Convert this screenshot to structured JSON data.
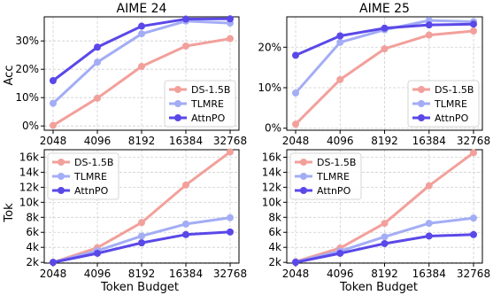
{
  "figure": {
    "ylabel_top": "Acc",
    "ylabel_bottom": "Tok",
    "xlabel": "Token Budget"
  },
  "series_styles": [
    {
      "name": "DS-1.5B",
      "color": "#f2a09b"
    },
    {
      "name": "TLMRE",
      "color": "#a3adf5"
    },
    {
      "name": "AttnPO",
      "color": "#5a48e8"
    }
  ],
  "chart_data": [
    {
      "type": "line",
      "title": "AIME 24",
      "ylabel": "Acc",
      "x": [
        "2048",
        "4096",
        "8192",
        "16384",
        "32768"
      ],
      "yticks": [
        "0%",
        "10%",
        "20%",
        "30%"
      ],
      "ylim": [
        -1.5,
        38.5
      ],
      "ytick_values": [
        0,
        10,
        20,
        30
      ],
      "legend": "lower-right",
      "grid": true,
      "series": [
        {
          "name": "DS-1.5B",
          "values": [
            0.2,
            9.8,
            21.0,
            28.2,
            30.8
          ]
        },
        {
          "name": "TLMRE",
          "values": [
            8.0,
            22.5,
            32.5,
            37.0,
            36.3
          ]
        },
        {
          "name": "AttnPO",
          "values": [
            16.0,
            27.8,
            35.2,
            37.7,
            37.8
          ]
        }
      ]
    },
    {
      "type": "line",
      "title": "AIME 25",
      "ylabel": "",
      "x": [
        "2048",
        "4096",
        "8192",
        "16384",
        "32768"
      ],
      "yticks": [
        "0%",
        "10%",
        "20%"
      ],
      "ylim": [
        -0.5,
        27.5
      ],
      "ytick_values": [
        0,
        10,
        20
      ],
      "legend": "lower-right",
      "grid": true,
      "series": [
        {
          "name": "DS-1.5B",
          "values": [
            1.0,
            12.0,
            19.6,
            23.0,
            24.0
          ]
        },
        {
          "name": "TLMRE",
          "values": [
            8.7,
            21.2,
            24.3,
            26.6,
            26.3
          ]
        },
        {
          "name": "AttnPO",
          "values": [
            18.0,
            22.8,
            24.7,
            25.5,
            25.7
          ]
        }
      ]
    },
    {
      "type": "line",
      "title": "",
      "ylabel": "Tok",
      "xlabel": "Token Budget",
      "x": [
        "2048",
        "4096",
        "8192",
        "16384",
        "32768"
      ],
      "yticks": [
        "2k",
        "4k",
        "6k",
        "8k",
        "10k",
        "12k",
        "14k",
        "16k"
      ],
      "ylim": [
        1900,
        17000
      ],
      "ytick_values": [
        2000,
        4000,
        6000,
        8000,
        10000,
        12000,
        14000,
        16000
      ],
      "legend": "upper-left",
      "grid": true,
      "series": [
        {
          "name": "DS-1.5B",
          "values": [
            2000,
            3950,
            7300,
            12300,
            16700
          ]
        },
        {
          "name": "TLMRE",
          "values": [
            2000,
            3550,
            5500,
            7100,
            7950
          ]
        },
        {
          "name": "AttnPO",
          "values": [
            2000,
            3200,
            4600,
            5700,
            6050
          ]
        }
      ]
    },
    {
      "type": "line",
      "title": "",
      "ylabel": "",
      "xlabel": "Token Budget",
      "x": [
        "2048",
        "4096",
        "8192",
        "16384",
        "32768"
      ],
      "yticks": [
        "2k",
        "4k",
        "6k",
        "8k",
        "10k",
        "12k",
        "14k",
        "16k"
      ],
      "ylim": [
        1900,
        17000
      ],
      "ytick_values": [
        2000,
        4000,
        6000,
        8000,
        10000,
        12000,
        14000,
        16000
      ],
      "legend": "upper-left",
      "grid": true,
      "series": [
        {
          "name": "DS-1.5B",
          "values": [
            2100,
            3900,
            7200,
            12200,
            16600
          ]
        },
        {
          "name": "TLMRE",
          "values": [
            2050,
            3500,
            5400,
            7200,
            7900
          ]
        },
        {
          "name": "AttnPO",
          "values": [
            2000,
            3200,
            4500,
            5500,
            5700
          ]
        }
      ]
    }
  ]
}
